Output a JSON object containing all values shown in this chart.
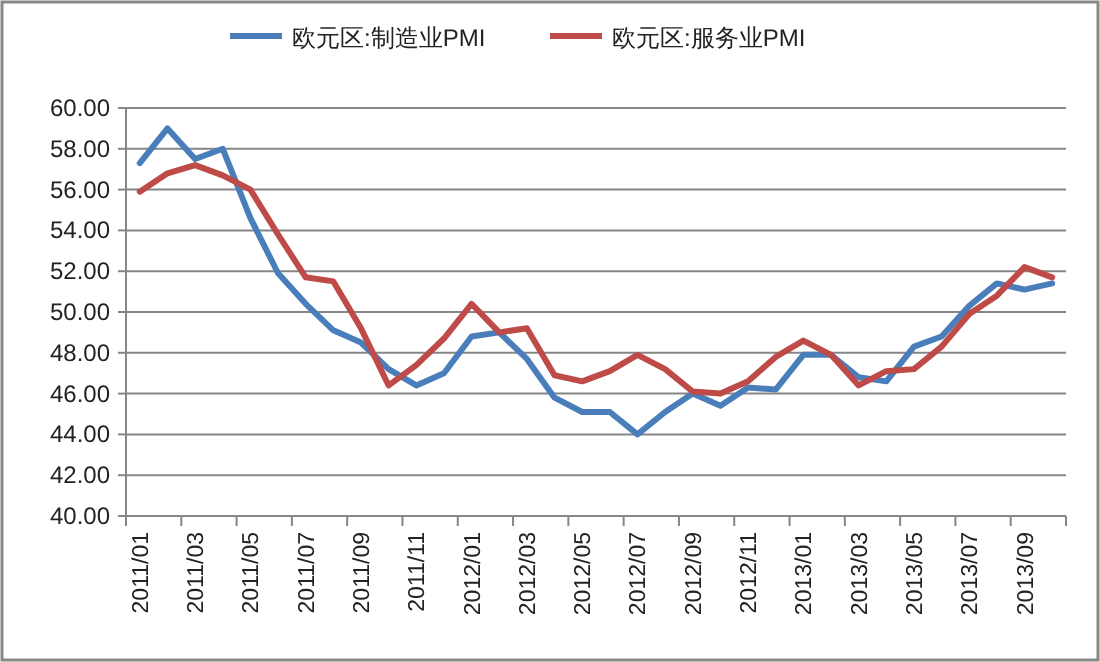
{
  "chart_data": {
    "type": "line",
    "categories": [
      "2011/01",
      null,
      "2011/03",
      null,
      "2011/05",
      null,
      "2011/07",
      null,
      "2011/09",
      null,
      "2011/11",
      null,
      "2012/01",
      null,
      "2012/03",
      null,
      "2012/05",
      null,
      "2012/07",
      null,
      "2012/09",
      null,
      "2012/11",
      null,
      "2013/01",
      null,
      "2013/03",
      null,
      "2013/05",
      null,
      "2013/07",
      null,
      "2013/09",
      null
    ],
    "series": [
      {
        "name": "欧元区:制造业PMI",
        "color": "#4a7ebb",
        "values": [
          57.3,
          59.0,
          57.5,
          58.0,
          54.6,
          51.9,
          50.4,
          49.1,
          48.5,
          47.2,
          46.4,
          47.0,
          48.8,
          49.0,
          47.7,
          45.8,
          45.1,
          45.1,
          44.0,
          45.1,
          46.0,
          45.4,
          46.3,
          46.2,
          47.9,
          47.9,
          46.8,
          46.6,
          48.3,
          48.8,
          50.3,
          51.4,
          51.1,
          51.4
        ]
      },
      {
        "name": "欧元区:服务业PMI",
        "color": "#be4b48",
        "values": [
          55.9,
          56.8,
          57.2,
          56.7,
          56.0,
          53.8,
          51.7,
          51.5,
          49.2,
          46.4,
          47.4,
          48.7,
          50.4,
          49.0,
          49.2,
          46.9,
          46.6,
          47.1,
          47.9,
          47.2,
          46.1,
          46.0,
          46.6,
          47.8,
          48.6,
          47.9,
          46.4,
          47.1,
          47.2,
          48.3,
          49.9,
          50.8,
          52.2,
          51.7
        ]
      }
    ],
    "ylim": [
      40,
      60
    ],
    "yticks": [
      {
        "value": 40,
        "label": "40.00"
      },
      {
        "value": 42,
        "label": "42.00"
      },
      {
        "value": 44,
        "label": "44.00"
      },
      {
        "value": 46,
        "label": "46.00"
      },
      {
        "value": 48,
        "label": "48.00"
      },
      {
        "value": 50,
        "label": "50.00"
      },
      {
        "value": 52,
        "label": "52.00"
      },
      {
        "value": 54,
        "label": "54.00"
      },
      {
        "value": 56,
        "label": "56.00"
      },
      {
        "value": 58,
        "label": "58.00"
      },
      {
        "value": 60,
        "label": "60.00"
      }
    ],
    "grid": "y",
    "legend": "top",
    "line_style": "solid",
    "marker": "none"
  }
}
